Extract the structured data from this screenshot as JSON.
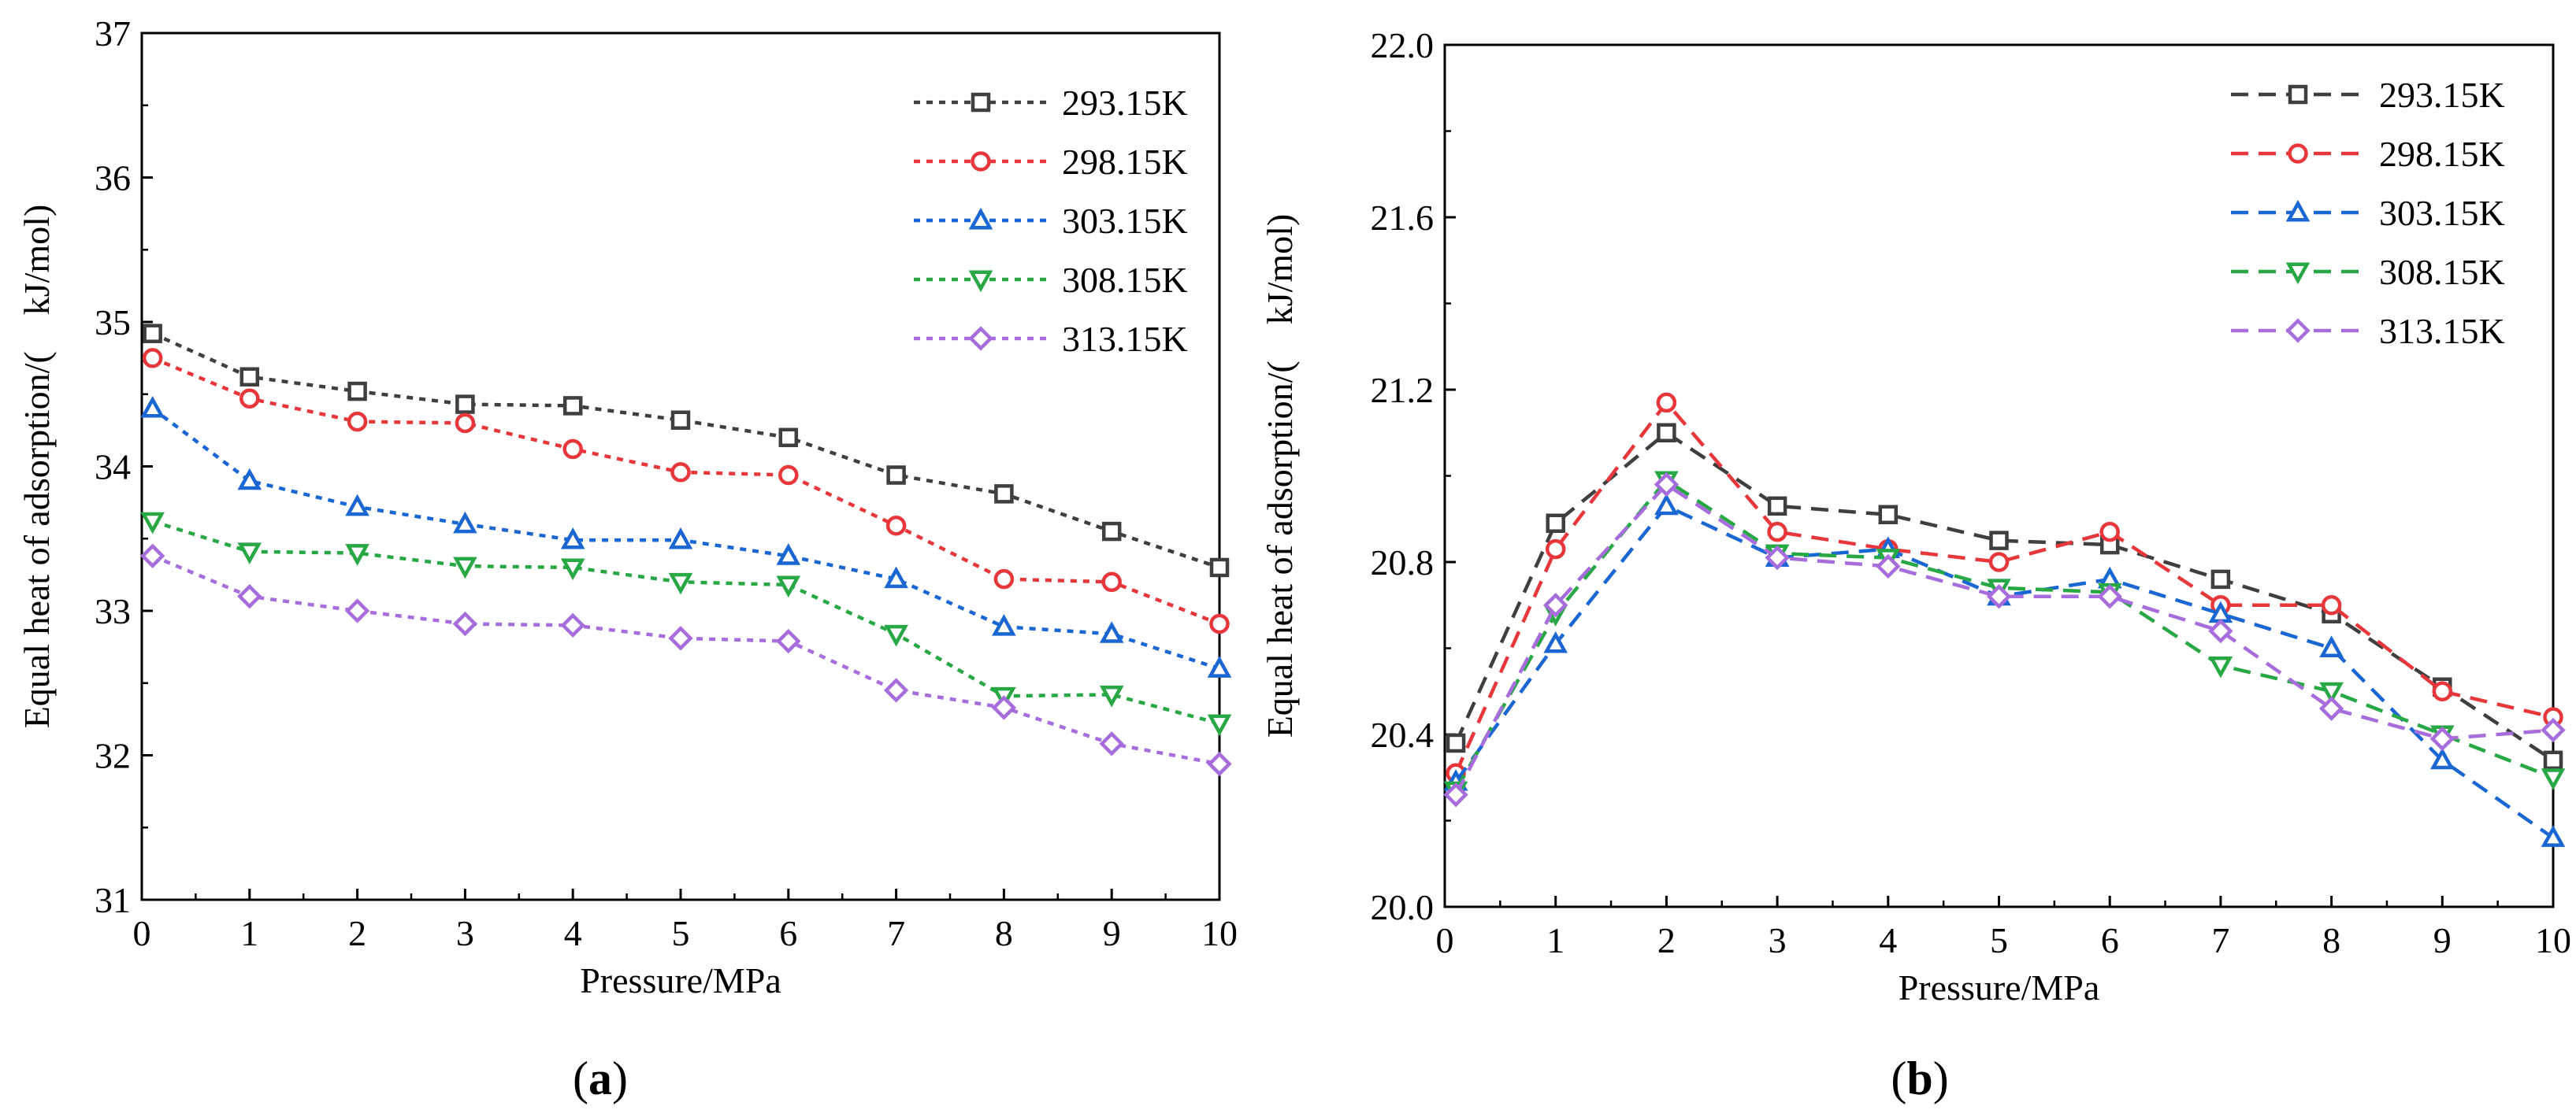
{
  "chart_data": [
    {
      "type": "line",
      "panel_label": "a",
      "xlabel": "Pressure/MPa",
      "ylabel": "Equal heat of adsorption/(　kJ/mol)",
      "xlim": [
        0,
        10
      ],
      "ylim": [
        31,
        37
      ],
      "x_ticks": [
        0,
        1,
        2,
        3,
        4,
        5,
        6,
        7,
        8,
        9,
        10
      ],
      "y_ticks": [
        31,
        32,
        33,
        34,
        35,
        36,
        37
      ],
      "y_tick_decimals": 0,
      "line_style": "dotted",
      "legend_position": "top-right",
      "x": [
        0.1,
        1,
        2,
        3,
        4,
        5,
        6,
        7,
        8,
        9,
        10
      ],
      "series": [
        {
          "name": "293.15K",
          "color": "#3f3f3f",
          "marker": "square",
          "values": [
            34.92,
            34.62,
            34.52,
            34.43,
            34.42,
            34.32,
            34.2,
            33.94,
            33.81,
            33.55,
            33.3
          ]
        },
        {
          "name": "298.15K",
          "color": "#e8373b",
          "marker": "circle",
          "values": [
            34.75,
            34.47,
            34.31,
            34.3,
            34.12,
            33.96,
            33.94,
            33.59,
            33.22,
            33.2,
            32.91
          ]
        },
        {
          "name": "303.15K",
          "color": "#1a67d4",
          "marker": "triangle-up",
          "values": [
            34.4,
            33.9,
            33.72,
            33.6,
            33.49,
            33.49,
            33.38,
            33.22,
            32.89,
            32.84,
            32.6
          ]
        },
        {
          "name": "308.15K",
          "color": "#27a845",
          "marker": "triangle-down",
          "values": [
            33.62,
            33.41,
            33.4,
            33.31,
            33.3,
            33.2,
            33.18,
            32.84,
            32.41,
            32.42,
            32.22
          ]
        },
        {
          "name": "313.15K",
          "color": "#a76ddc",
          "marker": "diamond",
          "values": [
            33.38,
            33.1,
            33.0,
            32.91,
            32.9,
            32.81,
            32.79,
            32.45,
            32.33,
            32.08,
            31.94
          ]
        }
      ]
    },
    {
      "type": "line",
      "panel_label": "b",
      "xlabel": "Pressure/MPa",
      "ylabel": "Equal heat of adsorption/(　kJ/mol)",
      "xlim": [
        0,
        10
      ],
      "ylim": [
        20.0,
        22.0
      ],
      "x_ticks": [
        0,
        1,
        2,
        3,
        4,
        5,
        6,
        7,
        8,
        9,
        10
      ],
      "y_ticks": [
        20.0,
        20.4,
        20.8,
        21.2,
        21.6,
        22.0
      ],
      "y_tick_decimals": 1,
      "line_style": "dashed",
      "legend_position": "top-right",
      "x": [
        0.1,
        1,
        2,
        3,
        4,
        5,
        6,
        7,
        8,
        9,
        10
      ],
      "series": [
        {
          "name": "293.15K",
          "color": "#3f3f3f",
          "marker": "square",
          "values": [
            20.38,
            20.89,
            21.1,
            20.93,
            20.91,
            20.85,
            20.84,
            20.76,
            20.68,
            20.51,
            20.34
          ]
        },
        {
          "name": "298.15K",
          "color": "#e8373b",
          "marker": "circle",
          "values": [
            20.31,
            20.83,
            21.17,
            20.87,
            20.83,
            20.8,
            20.87,
            20.7,
            20.7,
            20.5,
            20.44
          ]
        },
        {
          "name": "303.15K",
          "color": "#1a67d4",
          "marker": "triangle-up",
          "values": [
            20.29,
            20.61,
            20.93,
            20.81,
            20.83,
            20.72,
            20.76,
            20.68,
            20.6,
            20.34,
            20.16
          ]
        },
        {
          "name": "308.15K",
          "color": "#27a845",
          "marker": "triangle-down",
          "values": [
            20.27,
            20.68,
            20.99,
            20.82,
            20.81,
            20.74,
            20.73,
            20.56,
            20.5,
            20.4,
            20.3
          ]
        },
        {
          "name": "313.15K",
          "color": "#a76ddc",
          "marker": "diamond",
          "values": [
            20.26,
            20.7,
            20.98,
            20.81,
            20.79,
            20.72,
            20.72,
            20.64,
            20.46,
            20.39,
            20.41
          ]
        }
      ]
    }
  ]
}
